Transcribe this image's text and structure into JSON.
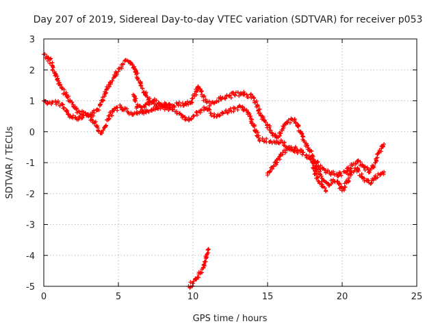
{
  "chart_data": {
    "type": "scatter",
    "title": "Day 207 of 2019, Sidereal Day-to-day VTEC variation (SDTVAR) for receiver p053",
    "xlabel": "GPS time / hours",
    "ylabel": "SDTVAR / TECUs",
    "xlim": [
      0,
      25
    ],
    "ylim": [
      -5,
      3
    ],
    "xticks": [
      "0",
      "5",
      "10",
      "15",
      "20",
      "25"
    ],
    "yticks": [
      "-5",
      "-4",
      "-3",
      "-2",
      "-1",
      "0",
      "1",
      "2",
      "3"
    ],
    "grid": true,
    "marker": "+",
    "color": "#ff0000",
    "series": [
      {
        "name": "track-upper",
        "points": [
          [
            0.0,
            2.5
          ],
          [
            0.3,
            2.4
          ],
          [
            0.6,
            2.1
          ],
          [
            0.9,
            1.7
          ],
          [
            1.2,
            1.4
          ],
          [
            1.6,
            1.1
          ],
          [
            2.0,
            0.8
          ],
          [
            2.4,
            0.65
          ],
          [
            2.8,
            0.6
          ],
          [
            3.2,
            0.55
          ],
          [
            3.6,
            0.7
          ],
          [
            3.9,
            1.0
          ],
          [
            4.2,
            1.35
          ],
          [
            4.6,
            1.65
          ],
          [
            5.0,
            1.95
          ],
          [
            5.3,
            2.2
          ],
          [
            5.6,
            2.3
          ],
          [
            5.9,
            2.2
          ],
          [
            6.2,
            1.85
          ],
          [
            6.6,
            1.4
          ],
          [
            7.0,
            1.05
          ],
          [
            7.4,
            0.9
          ],
          [
            7.8,
            0.85
          ],
          [
            8.2,
            0.9
          ],
          [
            8.6,
            0.85
          ],
          [
            9.0,
            0.9
          ],
          [
            9.4,
            0.85
          ],
          [
            9.8,
            0.95
          ],
          [
            10.1,
            1.15
          ],
          [
            10.35,
            1.45
          ],
          [
            10.6,
            1.2
          ],
          [
            10.9,
            0.95
          ],
          [
            11.2,
            0.9
          ],
          [
            11.6,
            1.0
          ],
          [
            12.0,
            1.1
          ],
          [
            12.4,
            1.15
          ],
          [
            12.8,
            1.2
          ],
          [
            13.2,
            1.25
          ],
          [
            13.6,
            1.2
          ],
          [
            14.0,
            1.15
          ],
          [
            14.2,
            0.95
          ],
          [
            14.5,
            0.6
          ],
          [
            14.8,
            0.35
          ],
          [
            15.2,
            0.05
          ],
          [
            15.6,
            -0.2
          ],
          [
            16.0,
            0.05
          ],
          [
            16.3,
            0.3
          ],
          [
            16.6,
            0.4
          ],
          [
            16.9,
            0.3
          ],
          [
            17.2,
            0.0
          ],
          [
            17.5,
            -0.35
          ],
          [
            17.8,
            -0.6
          ],
          [
            18.1,
            -0.9
          ],
          [
            18.4,
            -1.1
          ],
          [
            18.7,
            -1.2
          ],
          [
            19.0,
            -1.3
          ],
          [
            19.4,
            -1.35
          ],
          [
            19.8,
            -1.4
          ],
          [
            20.2,
            -1.3
          ],
          [
            20.6,
            -1.1
          ],
          [
            21.0,
            -0.95
          ],
          [
            21.4,
            -1.1
          ],
          [
            21.8,
            -1.3
          ],
          [
            22.2,
            -1.0
          ],
          [
            22.5,
            -0.6
          ],
          [
            22.8,
            -0.4
          ]
        ]
      },
      {
        "name": "track-lower",
        "points": [
          [
            0.0,
            1.0
          ],
          [
            0.4,
            0.95
          ],
          [
            0.8,
            0.95
          ],
          [
            1.2,
            0.9
          ],
          [
            1.5,
            0.7
          ],
          [
            1.8,
            0.5
          ],
          [
            2.2,
            0.4
          ],
          [
            2.6,
            0.45
          ],
          [
            3.0,
            0.5
          ],
          [
            3.4,
            0.3
          ],
          [
            3.8,
            -0.05
          ],
          [
            4.1,
            0.15
          ],
          [
            4.4,
            0.5
          ],
          [
            4.8,
            0.75
          ],
          [
            5.2,
            0.8
          ],
          [
            5.6,
            0.65
          ],
          [
            6.0,
            0.55
          ],
          [
            6.4,
            0.6
          ],
          [
            6.8,
            0.65
          ],
          [
            7.2,
            0.7
          ],
          [
            7.6,
            0.75
          ],
          [
            8.0,
            0.8
          ],
          [
            8.4,
            0.75
          ],
          [
            8.8,
            0.65
          ],
          [
            9.2,
            0.55
          ],
          [
            9.6,
            0.4
          ],
          [
            10.0,
            0.5
          ],
          [
            10.4,
            0.65
          ],
          [
            10.8,
            0.75
          ],
          [
            11.2,
            0.6
          ],
          [
            11.6,
            0.5
          ],
          [
            12.0,
            0.6
          ],
          [
            12.4,
            0.7
          ],
          [
            12.8,
            0.75
          ],
          [
            13.2,
            0.8
          ],
          [
            13.6,
            0.7
          ],
          [
            14.0,
            0.25
          ],
          [
            14.4,
            -0.2
          ],
          [
            14.8,
            -0.3
          ],
          [
            15.2,
            -0.3
          ],
          [
            15.6,
            -0.3
          ],
          [
            16.0,
            -0.35
          ],
          [
            16.4,
            -0.5
          ],
          [
            16.8,
            -0.6
          ],
          [
            17.2,
            -0.65
          ],
          [
            17.6,
            -0.75
          ],
          [
            18.0,
            -0.9
          ],
          [
            18.4,
            -1.3
          ],
          [
            18.8,
            -1.6
          ],
          [
            19.1,
            -1.7
          ],
          [
            19.4,
            -1.55
          ],
          [
            19.7,
            -1.6
          ],
          [
            20.0,
            -1.9
          ],
          [
            20.3,
            -1.65
          ],
          [
            20.6,
            -1.3
          ],
          [
            21.0,
            -1.2
          ],
          [
            21.4,
            -1.5
          ],
          [
            21.8,
            -1.65
          ],
          [
            22.2,
            -1.5
          ],
          [
            22.6,
            -1.35
          ],
          [
            22.8,
            -1.3
          ]
        ]
      },
      {
        "name": "track-fragment-a",
        "points": [
          [
            6.0,
            1.2
          ],
          [
            6.3,
            0.8
          ],
          [
            6.6,
            0.7
          ],
          [
            7.0,
            0.9
          ],
          [
            7.4,
            1.0
          ],
          [
            7.8,
            0.9
          ],
          [
            8.2,
            0.85
          ]
        ]
      },
      {
        "name": "track-fragment-b",
        "points": [
          [
            15.0,
            -1.4
          ],
          [
            15.4,
            -1.1
          ],
          [
            15.8,
            -0.8
          ],
          [
            16.2,
            -0.6
          ],
          [
            16.6,
            -0.5
          ],
          [
            17.0,
            -0.6
          ]
        ]
      },
      {
        "name": "track-fragment-c",
        "points": [
          [
            18.0,
            -1.0
          ],
          [
            18.3,
            -1.5
          ],
          [
            18.6,
            -1.7
          ],
          [
            18.9,
            -1.9
          ]
        ]
      },
      {
        "name": "track-isolated",
        "points": [
          [
            9.7,
            -5.0
          ],
          [
            10.0,
            -4.9
          ],
          [
            10.3,
            -4.7
          ],
          [
            10.6,
            -4.45
          ],
          [
            10.8,
            -4.2
          ],
          [
            10.95,
            -3.95
          ],
          [
            11.05,
            -3.8
          ]
        ]
      }
    ]
  }
}
